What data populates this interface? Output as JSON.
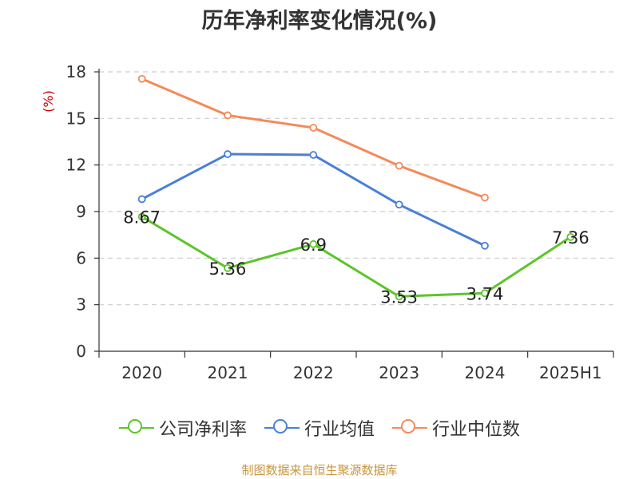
{
  "title": "历年净利率变化情况(%)",
  "source": "制图数据来自恒生聚源数据库",
  "chart_data": {
    "type": "line",
    "ylabel": "(%)",
    "ylim": [
      0,
      18
    ],
    "yticks": [
      0,
      3,
      6,
      9,
      12,
      15,
      18
    ],
    "grid": true,
    "legend_position": "bottom",
    "categories": [
      "2020",
      "2021",
      "2022",
      "2023",
      "2024",
      "2025H1"
    ],
    "series": [
      {
        "name": "公司净利率",
        "color": "#5cc52a",
        "labels": true,
        "values": [
          8.67,
          5.36,
          6.9,
          3.53,
          3.74,
          7.36
        ]
      },
      {
        "name": "行业均值",
        "color": "#4a7fd8",
        "labels": false,
        "values": [
          9.8,
          12.7,
          12.65,
          9.45,
          6.8,
          null
        ]
      },
      {
        "name": "行业中位数",
        "color": "#f5895a",
        "labels": false,
        "values": [
          17.55,
          15.2,
          14.4,
          11.95,
          9.9,
          null
        ]
      }
    ]
  }
}
